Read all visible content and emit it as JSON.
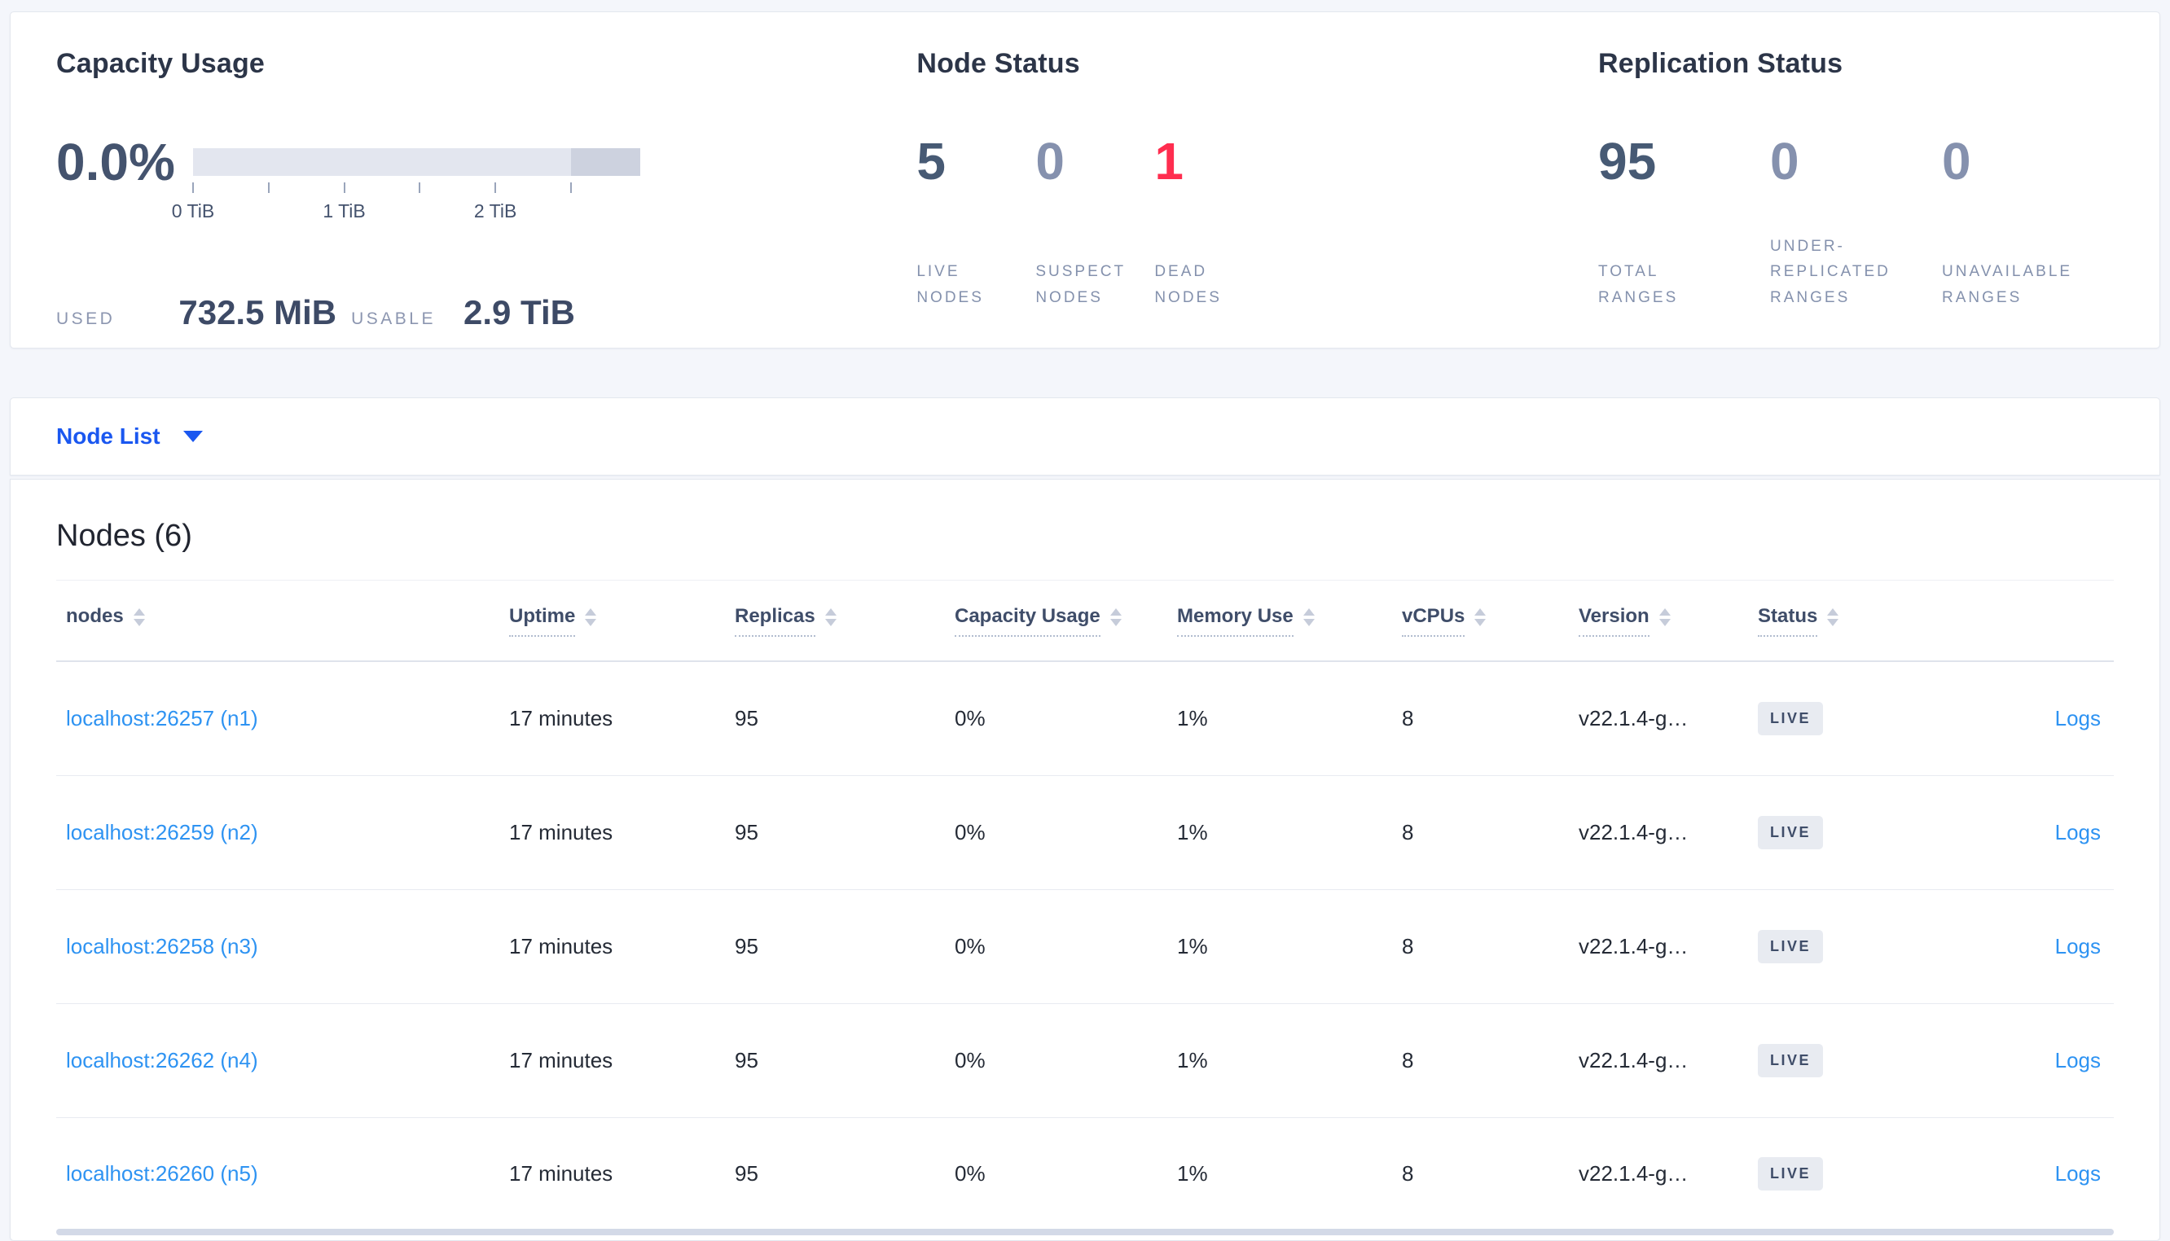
{
  "capacity": {
    "title": "Capacity Usage",
    "percent": "0.0%",
    "used_label": "USED",
    "used_value": "732.5 MiB",
    "usable_label": "USABLE",
    "usable_value": "2.9 TiB",
    "bar": {
      "light_color": "#e3e6ef",
      "dark_color": "#cdd2df",
      "split_pct": 84.5,
      "ticks": [
        {
          "pos": 0,
          "label": "0 TiB"
        },
        {
          "pos": 16.9,
          "label": ""
        },
        {
          "pos": 33.8,
          "label": "1 TiB"
        },
        {
          "pos": 50.7,
          "label": ""
        },
        {
          "pos": 67.6,
          "label": "2 TiB"
        },
        {
          "pos": 84.5,
          "label": ""
        }
      ]
    }
  },
  "node_status": {
    "title": "Node Status",
    "stats": [
      {
        "value": "5",
        "label": "LIVE\nNODES",
        "tone": "dark"
      },
      {
        "value": "0",
        "label": "SUSPECT\nNODES",
        "tone": "muted"
      },
      {
        "value": "1",
        "label": "DEAD\nNODES",
        "tone": "danger"
      }
    ]
  },
  "replication_status": {
    "title": "Replication Status",
    "stats": [
      {
        "value": "95",
        "label": "TOTAL\nRANGES",
        "tone": "dark"
      },
      {
        "value": "0",
        "label": "UNDER-\nREPLICATED\nRANGES",
        "tone": "muted"
      },
      {
        "value": "0",
        "label": "UNAVAILABLE\nRANGES",
        "tone": "muted"
      }
    ]
  },
  "node_list": {
    "selector_label": "Node List",
    "heading": "Nodes (6)",
    "columns": [
      {
        "label": "nodes",
        "dotted": false
      },
      {
        "label": "Uptime",
        "dotted": true
      },
      {
        "label": "Replicas",
        "dotted": true
      },
      {
        "label": "Capacity Usage",
        "dotted": true
      },
      {
        "label": "Memory Use",
        "dotted": true
      },
      {
        "label": "vCPUs",
        "dotted": true
      },
      {
        "label": "Version",
        "dotted": true
      },
      {
        "label": "Status",
        "dotted": true
      },
      {
        "label": "",
        "dotted": false
      }
    ],
    "rows": [
      {
        "node": "localhost:26257 (n1)",
        "uptime": "17 minutes",
        "replicas": "95",
        "capacity": "0%",
        "memory": "1%",
        "vcpus": "8",
        "version": "v22.1.4-g…",
        "status": "LIVE",
        "logs": "Logs"
      },
      {
        "node": "localhost:26259 (n2)",
        "uptime": "17 minutes",
        "replicas": "95",
        "capacity": "0%",
        "memory": "1%",
        "vcpus": "8",
        "version": "v22.1.4-g…",
        "status": "LIVE",
        "logs": "Logs"
      },
      {
        "node": "localhost:26258 (n3)",
        "uptime": "17 minutes",
        "replicas": "95",
        "capacity": "0%",
        "memory": "1%",
        "vcpus": "8",
        "version": "v22.1.4-g…",
        "status": "LIVE",
        "logs": "Logs"
      },
      {
        "node": "localhost:26262 (n4)",
        "uptime": "17 minutes",
        "replicas": "95",
        "capacity": "0%",
        "memory": "1%",
        "vcpus": "8",
        "version": "v22.1.4-g…",
        "status": "LIVE",
        "logs": "Logs"
      },
      {
        "node": "localhost:26260 (n5)",
        "uptime": "17 minutes",
        "replicas": "95",
        "capacity": "0%",
        "memory": "1%",
        "vcpus": "8",
        "version": "v22.1.4-g…",
        "status": "LIVE",
        "logs": "Logs"
      }
    ]
  },
  "colors": {
    "accent_blue": "#1a57f0",
    "link_blue": "#2e93f2",
    "danger_red": "#ff2d4f",
    "stat_dark": "#475a74",
    "stat_muted": "#8591ae",
    "page_bg": "#f4f6fb"
  }
}
